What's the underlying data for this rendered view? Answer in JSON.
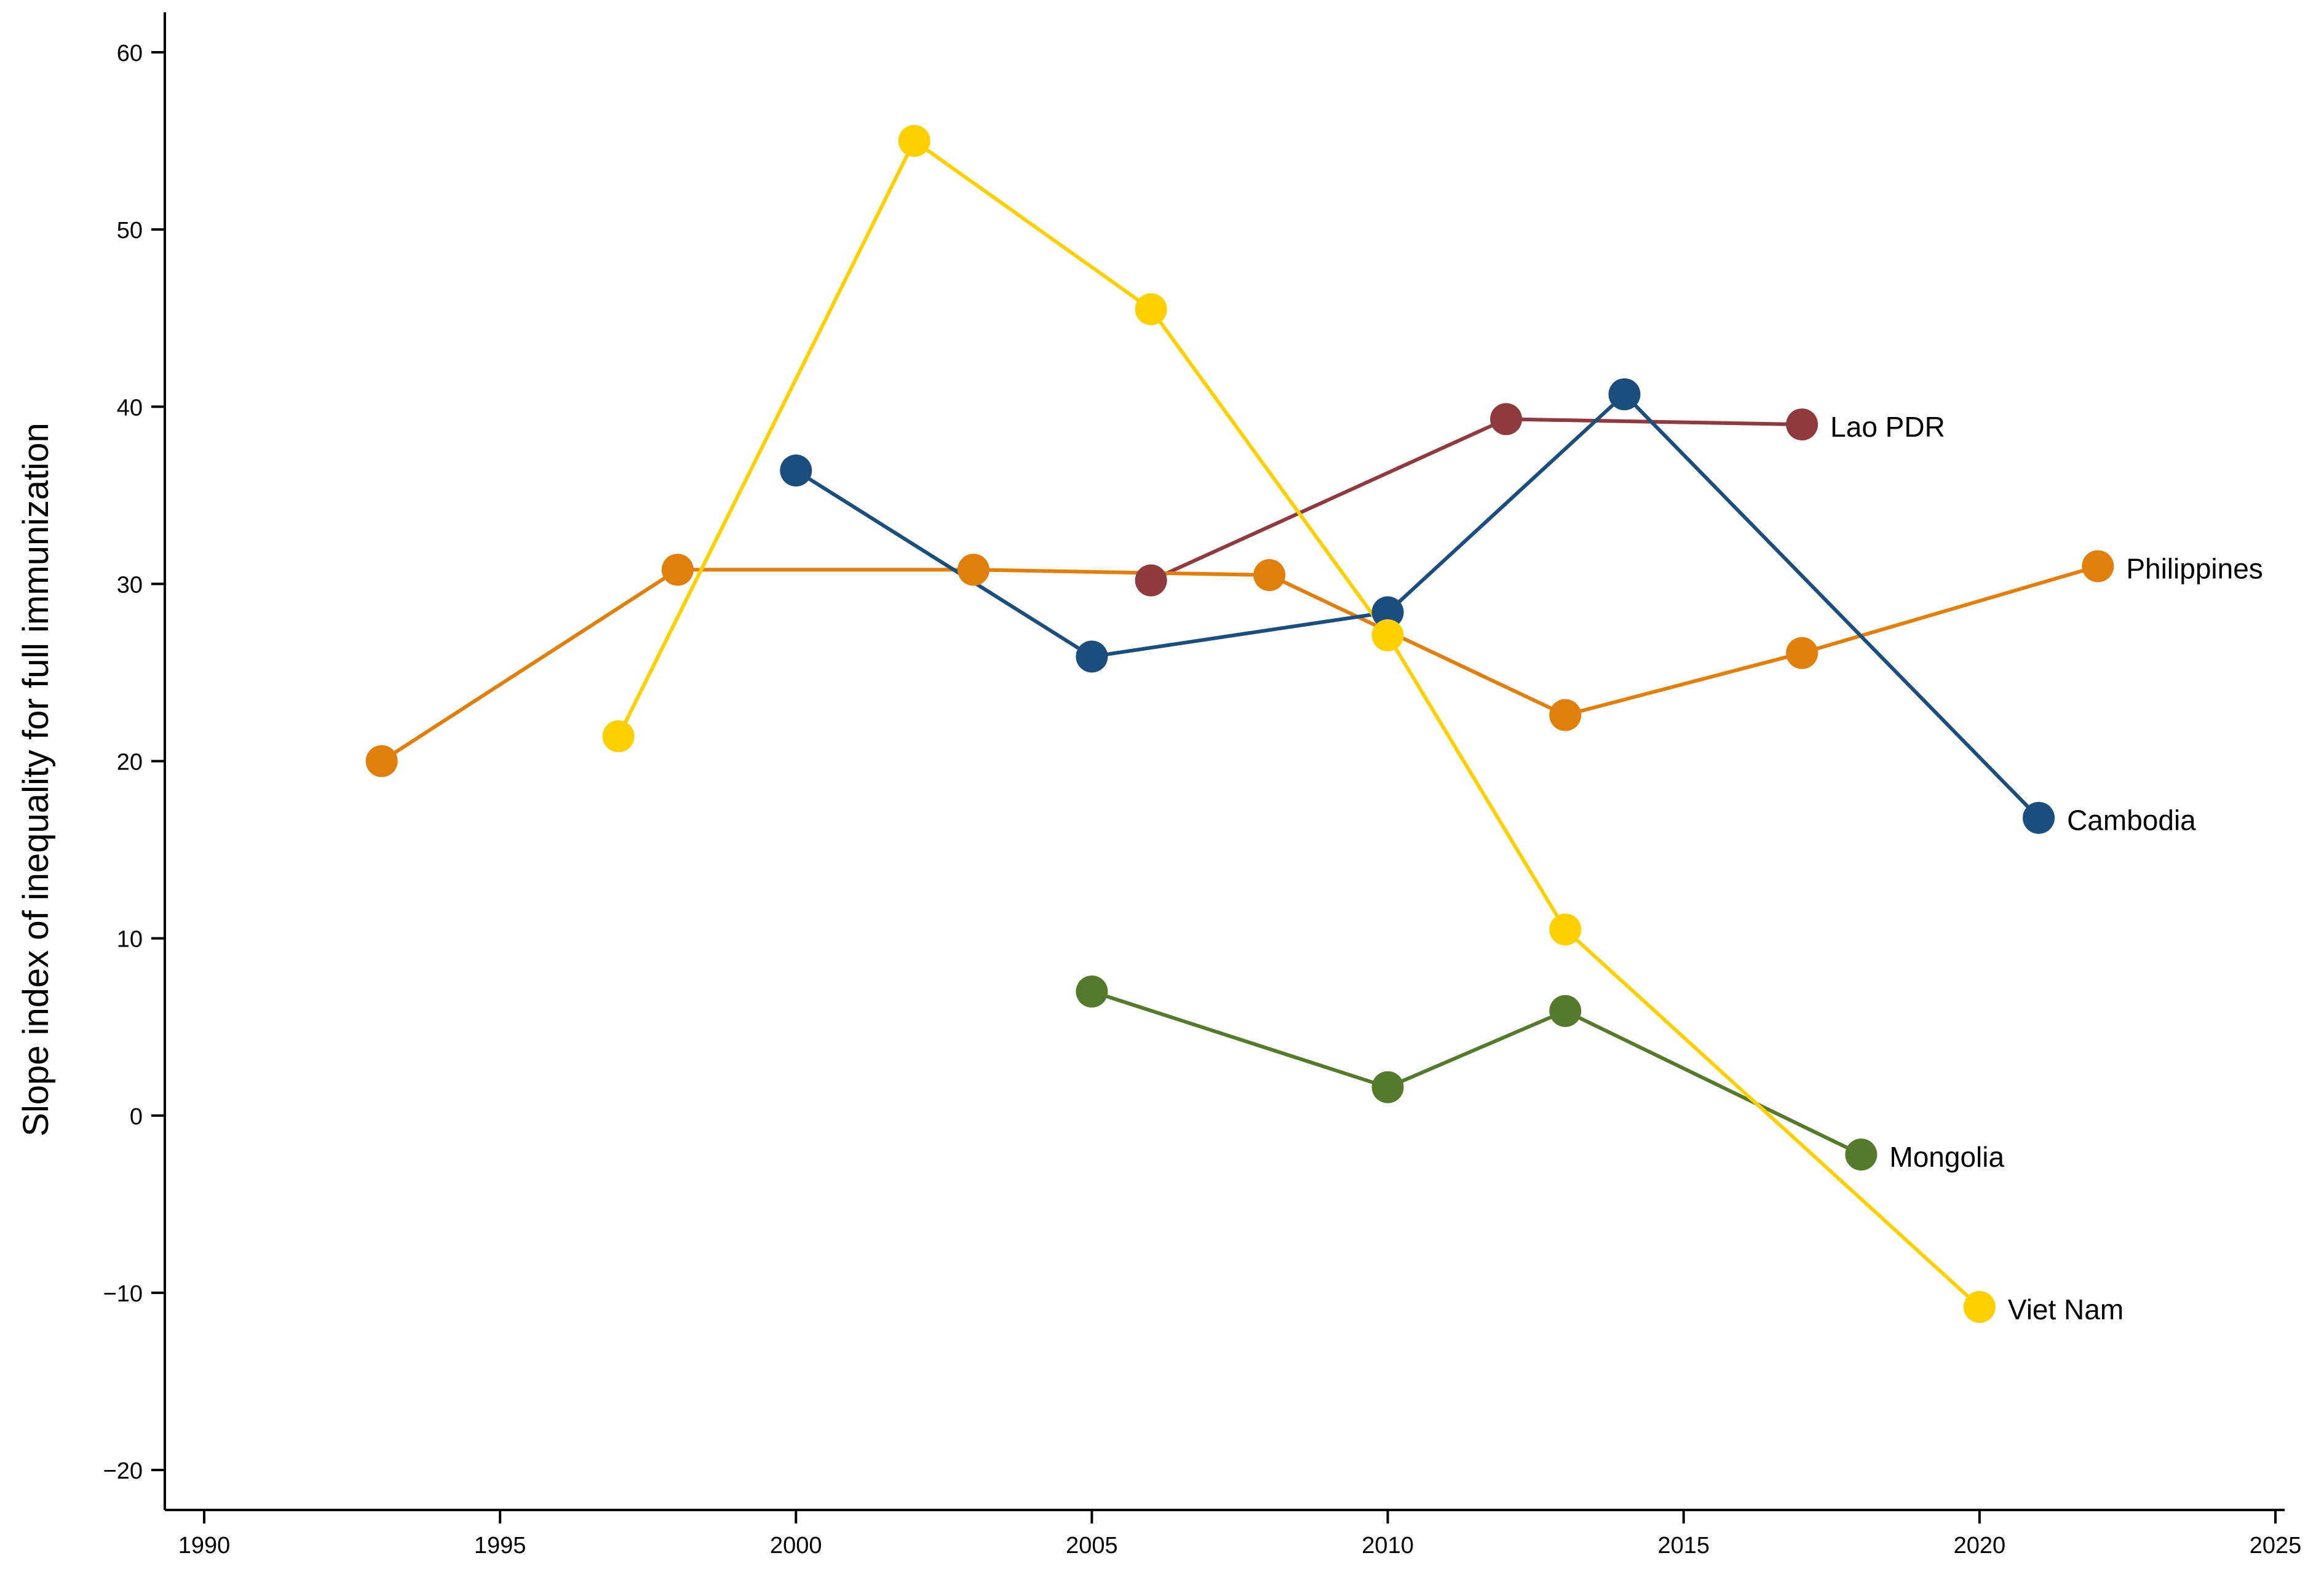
{
  "chart_data": {
    "type": "line",
    "title": "",
    "xlabel": "",
    "ylabel": "Slope index of inequality for full immunization",
    "xlim": [
      1990,
      2025
    ],
    "ylim": [
      -20,
      60
    ],
    "xticks": [
      1990,
      1995,
      2000,
      2005,
      2010,
      2015,
      2020,
      2025
    ],
    "yticks": [
      -20,
      -10,
      0,
      10,
      20,
      30,
      40,
      50,
      60
    ],
    "grid": false,
    "legend": "none; series labelled at the last point of each line",
    "series": [
      {
        "name": "Lao PDR",
        "color": "#8e3a3f",
        "x": [
          2006,
          2012,
          2017
        ],
        "y": [
          30.2,
          39.3,
          39.0
        ]
      },
      {
        "name": "Philippines",
        "color": "#e07f0c",
        "x": [
          1993,
          1998,
          2003,
          2008,
          2013,
          2017,
          2022
        ],
        "y": [
          20.0,
          30.8,
          30.8,
          30.5,
          22.6,
          26.1,
          31.0
        ]
      },
      {
        "name": "Cambodia",
        "color": "#1c4e7d",
        "x": [
          2000,
          2005,
          2010,
          2014,
          2021
        ],
        "y": [
          36.4,
          25.9,
          28.4,
          40.7,
          16.8
        ]
      },
      {
        "name": "Mongolia",
        "color": "#557a2c",
        "x": [
          2005,
          2010,
          2013,
          2018
        ],
        "y": [
          7.0,
          1.6,
          5.9,
          -2.2
        ]
      },
      {
        "name": "Viet Nam",
        "color": "#ffd000",
        "x": [
          1997,
          2002,
          2006,
          2010,
          2013,
          2020
        ],
        "y": [
          21.4,
          55.0,
          45.5,
          27.1,
          10.5,
          -10.8
        ]
      }
    ]
  }
}
